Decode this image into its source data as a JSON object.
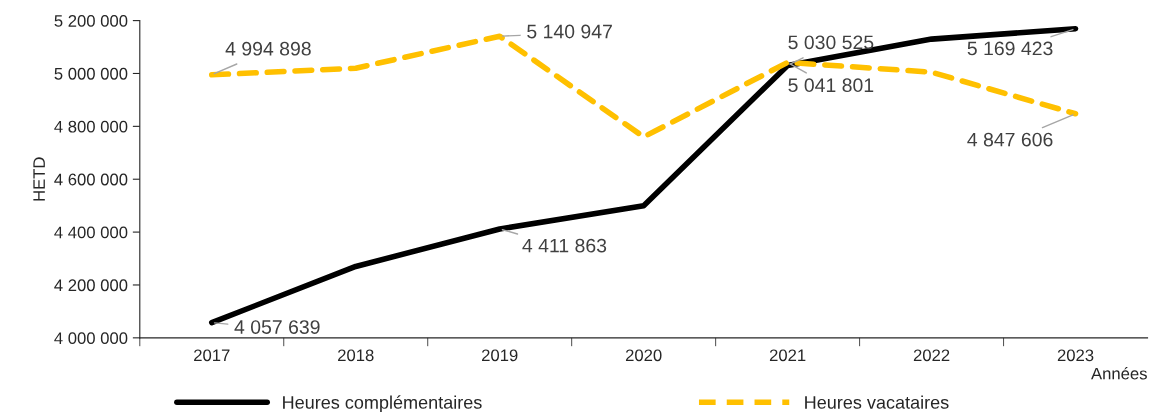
{
  "chart_data": {
    "type": "line",
    "xlabel": "Années",
    "ylabel": "HETD",
    "categories": [
      "2017",
      "2018",
      "2019",
      "2020",
      "2021",
      "2022",
      "2023"
    ],
    "series": [
      {
        "name": "Heures complémentaires",
        "color": "#000000",
        "line_style": "solid",
        "values": [
          4057639,
          4270000,
          4411863,
          4500000,
          5030525,
          5130000,
          5169423
        ],
        "value_labels": [
          "4 057 639",
          null,
          "4 411 863",
          null,
          "5 030 525",
          null,
          "5 169 423"
        ]
      },
      {
        "name": "Heures vacataires",
        "color": "#ffc000",
        "line_style": "dashed",
        "values": [
          4994898,
          5020000,
          5140947,
          4760000,
          5041801,
          5005000,
          4847606
        ],
        "value_labels": [
          "4 994 898",
          null,
          "5 140 947",
          null,
          "5 041 801",
          null,
          "4 847 606"
        ]
      }
    ],
    "ylim": [
      4000000,
      5200000
    ],
    "yticks": [
      {
        "value": 4000000,
        "label": "4 000 000"
      },
      {
        "value": 4200000,
        "label": "4 200 000"
      },
      {
        "value": 4400000,
        "label": "4 400 000"
      },
      {
        "value": 4600000,
        "label": "4 600 000"
      },
      {
        "value": 4800000,
        "label": "4 800 000"
      },
      {
        "value": 5000000,
        "label": "5 000 000"
      },
      {
        "value": 5200000,
        "label": "5 200 000"
      }
    ],
    "grid": false,
    "legend": "bottom",
    "marker": "none"
  }
}
